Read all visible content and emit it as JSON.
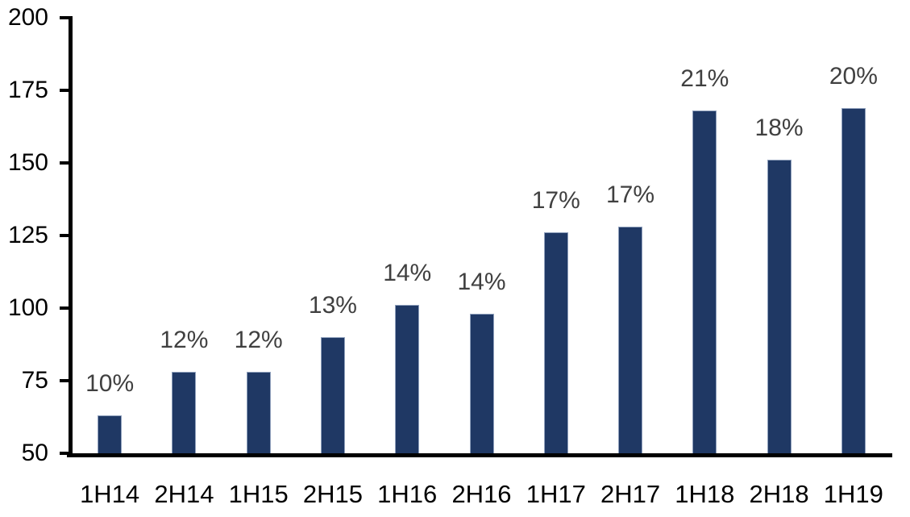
{
  "chart_data": {
    "type": "bar",
    "title": "",
    "xlabel": "",
    "ylabel": "",
    "categories": [
      "1H14",
      "2H14",
      "1H15",
      "2H15",
      "1H16",
      "2H16",
      "1H17",
      "2H17",
      "1H18",
      "2H18",
      "1H19"
    ],
    "values": [
      63,
      78,
      78,
      90,
      101,
      98,
      126,
      128,
      168,
      151,
      169
    ],
    "bar_labels": [
      "10%",
      "12%",
      "12%",
      "13%",
      "14%",
      "14%",
      "17%",
      "17%",
      "21%",
      "18%",
      "20%"
    ],
    "ylim": [
      50,
      200
    ],
    "yticks": [
      50,
      75,
      100,
      125,
      150,
      175,
      200
    ],
    "grid": false,
    "legend": null,
    "colors": {
      "bar_fill": "#1F3864",
      "bar_border": "#8FA0BC",
      "data_label": "#404040",
      "axis_text": "#000000",
      "axis_line": "#000000",
      "background": "#FFFFFF"
    }
  }
}
